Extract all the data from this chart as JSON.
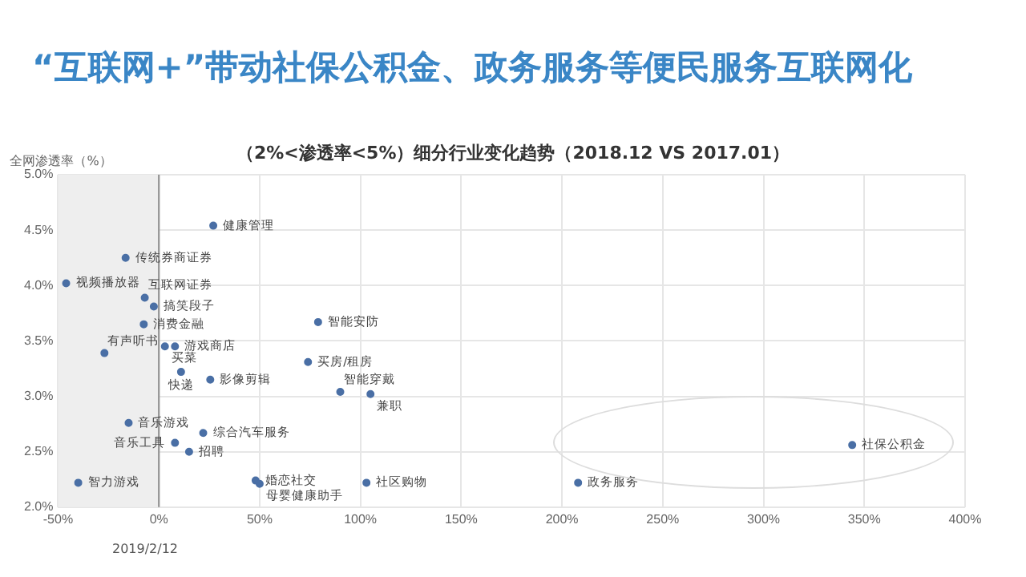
{
  "chart_data": {
    "type": "scatter",
    "title": "“互联网+”带动社保公积金、政务服务等便民服务互联网化",
    "subtitle": "（2%<渗透率<5%）细分行业变化趋势（2018.12  VS 2017.01）",
    "ylabel": "全网渗透率（%）",
    "x": [
      27,
      -16.5,
      -46,
      -7,
      -2.5,
      -7.5,
      3,
      8,
      -27,
      11,
      25.5,
      79,
      74,
      90,
      105,
      -15,
      22,
      8,
      15,
      48,
      50,
      103,
      -40,
      208,
      344
    ],
    "series": [
      {
        "color": "#4a6fa5",
        "values": [
          4.54,
          4.25,
          4.02,
          3.89,
          3.81,
          3.65,
          3.45,
          3.45,
          3.39,
          3.22,
          3.15,
          3.67,
          3.31,
          3.04,
          3.02,
          2.76,
          2.67,
          2.58,
          2.5,
          2.24,
          2.21,
          2.22,
          2.22,
          2.22,
          2.56
        ]
      }
    ],
    "annotations": [
      {
        "text": "健康管理",
        "x": 27,
        "y": 4.54
      },
      {
        "text": "传统券商证券",
        "x": -16.5,
        "y": 4.25
      },
      {
        "text": "视频播放器",
        "x": -46,
        "y": 4.02
      },
      {
        "text": "互联网证券",
        "x": -7,
        "y": 3.89
      },
      {
        "text": "搞笑段子",
        "x": -2.5,
        "y": 3.81
      },
      {
        "text": "消费金融",
        "x": -7.5,
        "y": 3.65
      },
      {
        "text": "买菜",
        "x": 3,
        "y": 3.45
      },
      {
        "text": "游戏商店",
        "x": 8,
        "y": 3.45
      },
      {
        "text": "有声听书",
        "x": -27,
        "y": 3.39
      },
      {
        "text": "快递",
        "x": 11,
        "y": 3.22
      },
      {
        "text": "影像剪辑",
        "x": 25.5,
        "y": 3.15
      },
      {
        "text": "智能安防",
        "x": 79,
        "y": 3.67
      },
      {
        "text": "买房/租房",
        "x": 74,
        "y": 3.31
      },
      {
        "text": "智能穿戴",
        "x": 90,
        "y": 3.04
      },
      {
        "text": "兼职",
        "x": 105,
        "y": 3.02
      },
      {
        "text": "音乐游戏",
        "x": -15,
        "y": 2.76
      },
      {
        "text": "综合汽车服务",
        "x": 22,
        "y": 2.67
      },
      {
        "text": "音乐工具",
        "x": 8,
        "y": 2.58
      },
      {
        "text": "招聘",
        "x": 15,
        "y": 2.5
      },
      {
        "text": "婚恋社交",
        "x": 48,
        "y": 2.24
      },
      {
        "text": "母婴健康助手",
        "x": 50,
        "y": 2.21
      },
      {
        "text": "社区购物",
        "x": 103,
        "y": 2.22
      },
      {
        "text": "智力游戏",
        "x": -40,
        "y": 2.22
      },
      {
        "text": "政务服务",
        "x": 208,
        "y": 2.22
      },
      {
        "text": "社保公积金",
        "x": 344,
        "y": 2.56
      },
      "2019/2/12"
    ],
    "xlim": [
      -50,
      400
    ],
    "ylim": [
      2,
      5
    ],
    "xticks": [
      {
        "value": -50,
        "label": "-50%"
      },
      {
        "value": 0,
        "label": "0%"
      },
      {
        "value": 50,
        "label": "50%"
      },
      {
        "value": 100,
        "label": "100%"
      },
      {
        "value": 150,
        "label": "150%"
      },
      {
        "value": 200,
        "label": "200%"
      },
      {
        "value": 250,
        "label": "250%"
      },
      {
        "value": 300,
        "label": "300%"
      },
      {
        "value": 350,
        "label": "350%"
      },
      {
        "value": 400,
        "label": "400%"
      }
    ],
    "yticks": [
      {
        "value": 2,
        "label": "2.0%"
      },
      {
        "value": 2.5,
        "label": "2.5%"
      },
      {
        "value": 3,
        "label": "3.0%"
      },
      {
        "value": 3.5,
        "label": "3.5%"
      },
      {
        "value": 4,
        "label": "4.0%"
      },
      {
        "value": 4.5,
        "label": "4.5%"
      },
      {
        "value": 5,
        "label": "5.0%"
      }
    ],
    "bands": [
      {
        "axis": "x",
        "from": -50,
        "to": 0,
        "color": "#eeeeee"
      }
    ],
    "ref_lines": [
      {
        "axis": "x",
        "value": 0,
        "color": "#999999"
      }
    ],
    "grid": true,
    "legend": false,
    "marker": "circle"
  }
}
